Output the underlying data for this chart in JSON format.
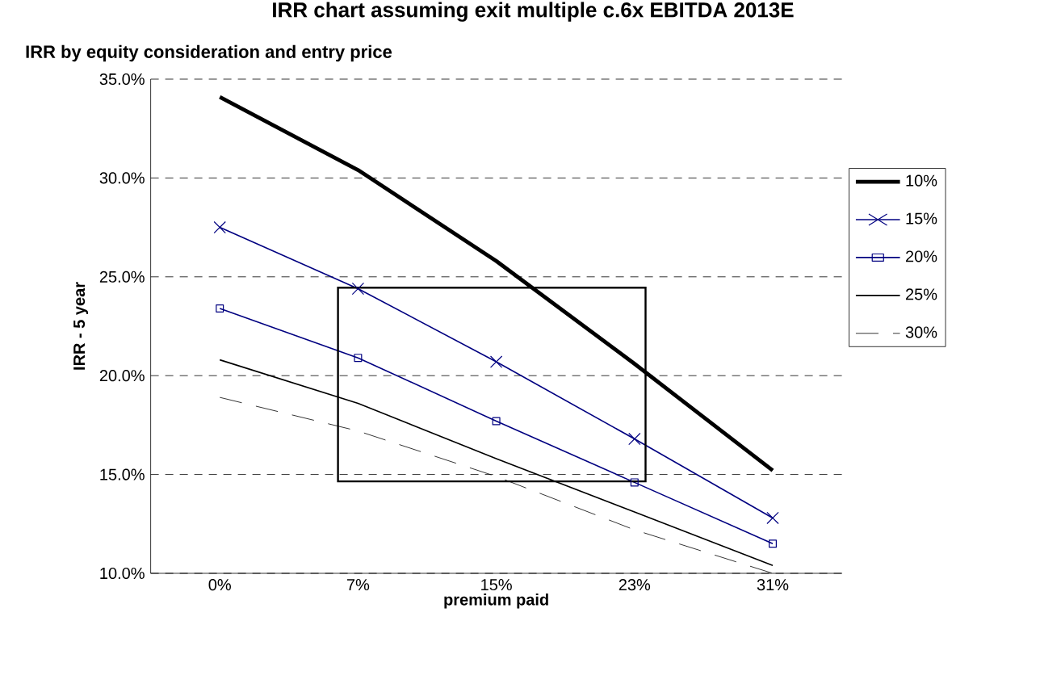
{
  "chart_data": {
    "type": "line",
    "title": "IRR chart assuming exit multiple c.6x EBITDA 2013E",
    "subtitle": "IRR by equity consideration and entry price",
    "xlabel": "premium paid",
    "ylabel": "IRR - 5 year",
    "categories": [
      "0%",
      "7%",
      "15%",
      "23%",
      "31%"
    ],
    "series": [
      {
        "name": "10%",
        "color": "#000000",
        "marker": "none",
        "line_style": "solid",
        "values": [
          34.1,
          30.4,
          25.8,
          20.6,
          15.2
        ]
      },
      {
        "name": "15%",
        "color": "#000080",
        "marker": "cross",
        "line_style": "solid",
        "values": [
          27.5,
          24.4,
          20.7,
          16.8,
          12.8
        ]
      },
      {
        "name": "20%",
        "color": "#000080",
        "marker": "square",
        "line_style": "solid",
        "values": [
          23.4,
          20.9,
          17.7,
          14.6,
          11.5
        ]
      },
      {
        "name": "25%",
        "color": "#000000",
        "marker": "none",
        "line_style": "solid",
        "values": [
          20.8,
          18.6,
          15.8,
          13.1,
          10.4
        ]
      },
      {
        "name": "30%",
        "color": "#000000",
        "marker": "none",
        "line_style": "dashed",
        "values": [
          18.9,
          17.2,
          14.9,
          12.2,
          10.0
        ]
      }
    ],
    "ylim": [
      10,
      35
    ],
    "yticks": [
      {
        "value": 10,
        "label": "10.0%"
      },
      {
        "value": 15,
        "label": "15.0%"
      },
      {
        "value": 20,
        "label": "20.0%"
      },
      {
        "value": 25,
        "label": "25.0%"
      },
      {
        "value": 30,
        "label": "30.0%"
      },
      {
        "value": 35,
        "label": "35.0%"
      }
    ],
    "grid": "y",
    "legend": "right"
  }
}
